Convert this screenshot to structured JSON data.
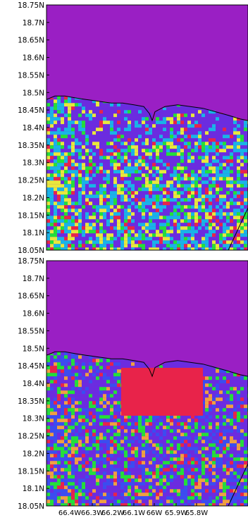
{
  "colors": {
    "ocean": "#9a1fc4",
    "violet": "#6a2ce0",
    "blue": "#3a4df0",
    "cyan": "#18b4e8",
    "green": "#22e03a",
    "yellow": "#e8e83c",
    "orange": "#f0a040",
    "red": "#e8234a",
    "coast_line": "#000000"
  },
  "maps": [
    {
      "name": "top-map",
      "palette": [
        "violet",
        "cyan",
        "yellow",
        "green",
        "red"
      ],
      "lat_labels": [
        "18.75N",
        "18.7N",
        "18.65N",
        "18.6N",
        "18.55N",
        "18.5N",
        "18.45N",
        "18.4N",
        "18.35N",
        "18.3N",
        "18.25N",
        "18.2N",
        "18.15N",
        "18.1N",
        "18.05N"
      ]
    },
    {
      "name": "bottom-map",
      "palette": [
        "violet",
        "blue",
        "green",
        "orange",
        "red"
      ],
      "lat_labels": [
        "18.75N",
        "18.7N",
        "18.65N",
        "18.6N",
        "18.55N",
        "18.5N",
        "18.45N",
        "18.4N",
        "18.35N",
        "18.3N",
        "18.25N",
        "18.2N",
        "18.15N",
        "18.1N",
        "18.05N"
      ],
      "highlight_block": "red"
    }
  ],
  "lon_labels": [
    "66.4W",
    "66.3W",
    "66.2W",
    "66.1W",
    "66W",
    "65.9W",
    "65.8W"
  ]
}
